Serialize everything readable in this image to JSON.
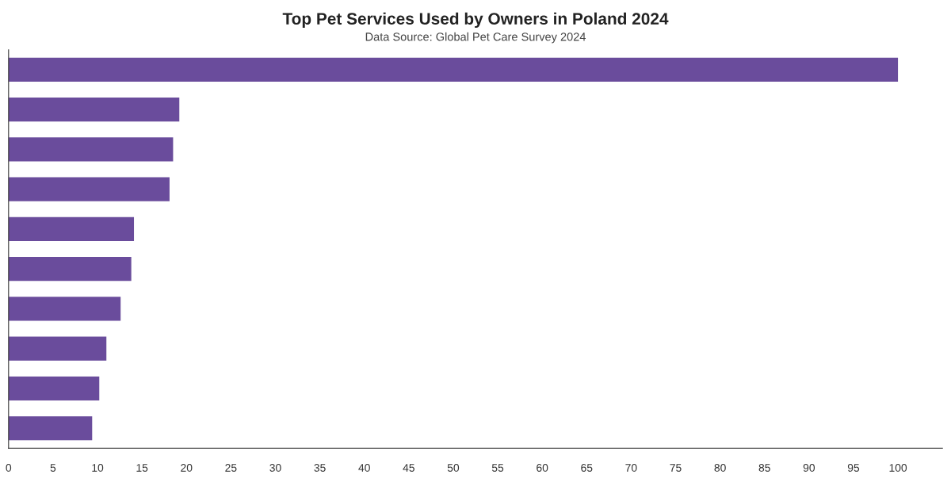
{
  "chart_data": {
    "type": "bar",
    "orientation": "horizontal",
    "title": "Top Pet Services Used by Owners in Poland 2024",
    "subtitle": "Data Source: Global Pet Care Survey 2024",
    "categories": [
      null,
      null,
      null,
      null,
      null,
      null,
      null,
      null,
      null,
      null
    ],
    "values": [
      100,
      19.2,
      18.5,
      18.1,
      14.1,
      13.8,
      12.6,
      11.0,
      10.2,
      9.4
    ],
    "color": "#6a4c9c",
    "xlim": [
      0,
      105
    ],
    "xticks": [
      0,
      5,
      10,
      15,
      20,
      25,
      30,
      35,
      40,
      45,
      50,
      55,
      60,
      65,
      70,
      75,
      80,
      85,
      90,
      95,
      100
    ],
    "grid": false,
    "legend": false
  }
}
